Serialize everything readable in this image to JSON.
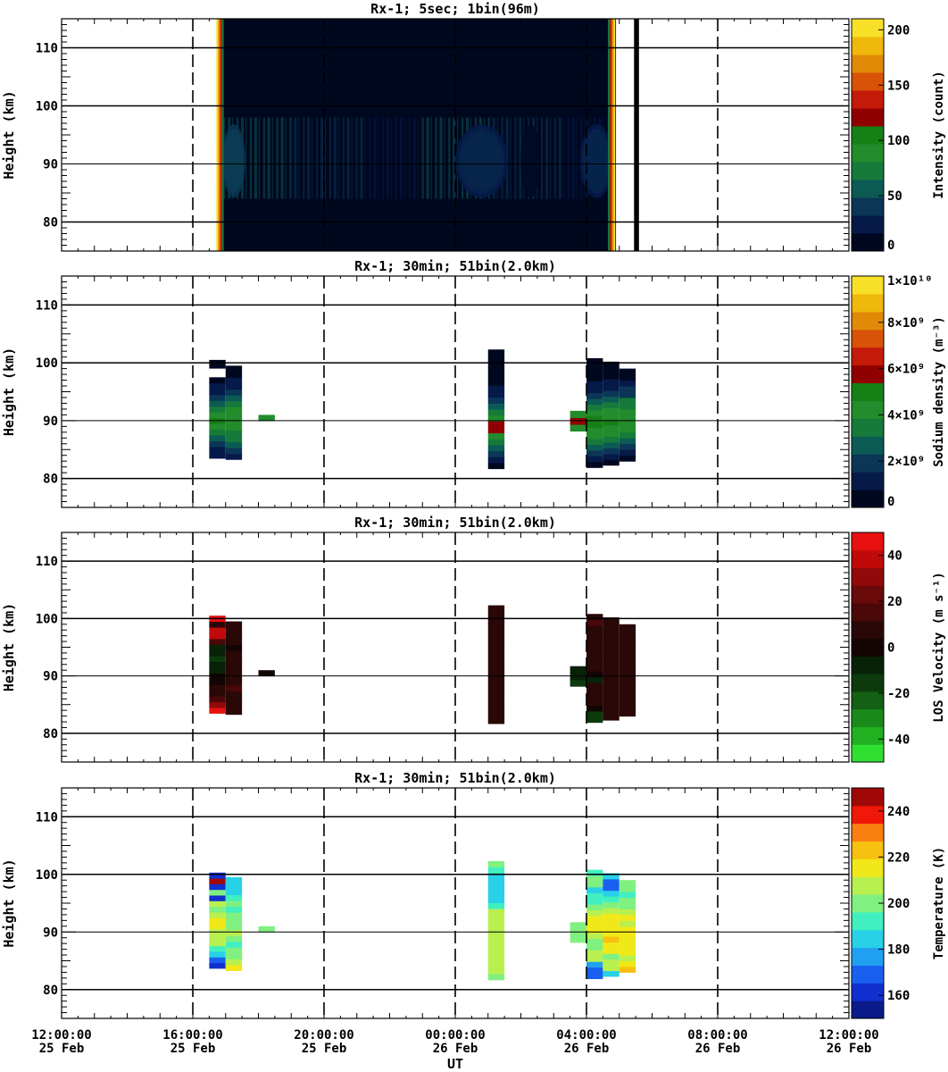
{
  "x_axis": {
    "label": "UT",
    "ticks": [
      {
        "hour": 0,
        "time": "12:00:00",
        "date": "25 Feb"
      },
      {
        "hour": 4,
        "time": "16:00:00",
        "date": "25 Feb"
      },
      {
        "hour": 8,
        "time": "20:00:00",
        "date": "25 Feb"
      },
      {
        "hour": 12,
        "time": "00:00:00",
        "date": "26 Feb"
      },
      {
        "hour": 16,
        "time": "04:00:00",
        "date": "26 Feb"
      },
      {
        "hour": 20,
        "time": "08:00:00",
        "date": "26 Feb"
      },
      {
        "hour": 24,
        "time": "12:00:00",
        "date": "26 Feb"
      }
    ]
  },
  "chart_data": [
    {
      "type": "heatmap",
      "title": "Rx-1;  5sec; 1bin(96m)",
      "ylabel": "Height (km)",
      "ylim": [
        75,
        115
      ],
      "yticks": [
        80,
        90,
        100,
        110
      ],
      "colorbar": {
        "label": "Intensity (count)",
        "range": [
          0,
          210
        ],
        "ticks": [
          {
            "v": 0,
            "t": "0"
          },
          {
            "v": 50,
            "t": "50"
          },
          {
            "v": 100,
            "t": "100"
          },
          {
            "v": 150,
            "t": "150"
          },
          {
            "v": 200,
            "t": "200"
          }
        ],
        "colors": [
          "#000820",
          "#061a4a",
          "#0b3656",
          "#0c5a54",
          "#157a3a",
          "#238c2c",
          "#158015",
          "#900000",
          "#c41a0a",
          "#d85208",
          "#e08a08",
          "#f0b80a",
          "#f8e028"
        ]
      },
      "observation": {
        "start_hour": 4.8,
        "end_hour": 16.9,
        "bright_band_km": [
          85,
          97
        ],
        "peak_km": 90.5
      },
      "intensity_patches": [
        {
          "start_hour": 4.9,
          "end_hour": 5.6,
          "level": 130
        },
        {
          "start_hour": 12.0,
          "end_hour": 13.6,
          "level": 125
        },
        {
          "start_hour": 14.0,
          "end_hour": 14.6,
          "level": 60
        },
        {
          "start_hour": 15.8,
          "end_hour": 16.8,
          "level": 120
        }
      ],
      "saturation_edges": [
        {
          "hour": 4.8
        },
        {
          "hour": 16.9
        }
      ],
      "black_stripe": {
        "start_hour": 17.45,
        "end_hour": 17.6
      }
    },
    {
      "type": "heatmap",
      "title": "Rx-1; 30min; 51bin(2.0km)",
      "ylabel": "Height (km)",
      "ylim": [
        75,
        115
      ],
      "yticks": [
        80,
        90,
        100,
        110
      ],
      "colorbar": {
        "label": "Sodium density (m⁻³)",
        "range": [
          0,
          10000000000.0
        ],
        "ticks": [
          {
            "v": 0,
            "t": "0"
          },
          {
            "v": 2000000000.0,
            "t": "2×10⁹"
          },
          {
            "v": 4000000000.0,
            "t": "4×10⁹"
          },
          {
            "v": 6000000000.0,
            "t": "6×10⁹"
          },
          {
            "v": 8000000000.0,
            "t": "8×10⁹"
          },
          {
            "v": 10000000000.0,
            "t": "1×10¹⁰"
          }
        ],
        "colors": [
          "#000820",
          "#061a4a",
          "#0b3656",
          "#0c5a54",
          "#157a3a",
          "#238c2c",
          "#158015",
          "#900000",
          "#c41a0a",
          "#d85208",
          "#e08a08",
          "#f0b80a",
          "#f8e028"
        ]
      },
      "columns": [
        {
          "start_hour": 4.5,
          "end_hour": 5.0,
          "bottom_km": 83.5,
          "top_km": 97.5,
          "cells": [
            1,
            1.5,
            2.2,
            3.0,
            3.8,
            4.4,
            4.7,
            4.5,
            3.8,
            3.0,
            2.0,
            1.2,
            0.8,
            0.5
          ],
          "extra": [
            {
              "bottom_km": 99.0,
              "top_km": 100.5,
              "v": 0.4
            }
          ]
        },
        {
          "start_hour": 5.0,
          "end_hour": 5.5,
          "bottom_km": 83.3,
          "top_km": 99.5,
          "cells": [
            1.0,
            1.6,
            2.4,
            3.1,
            3.8,
            4.2,
            4.5,
            4.6,
            4.3,
            3.6,
            2.8,
            2.0,
            1.4,
            0.9,
            0.6,
            0.4
          ]
        },
        {
          "start_hour": 6.0,
          "end_hour": 6.5,
          "bottom_km": 90.0,
          "top_km": 91.0,
          "cells": [
            4.4
          ]
        },
        {
          "start_hour": 13.0,
          "end_hour": 13.5,
          "bottom_km": 81.7,
          "top_km": 102.3,
          "cells": [
            0.5,
            1.0,
            1.6,
            2.6,
            3.6,
            4.5,
            6.0,
            5.9,
            4.6,
            3.6,
            2.6,
            1.8,
            1.2,
            0.8,
            0.6,
            0.5,
            0.4,
            0.3,
            0.3,
            0.2
          ]
        },
        {
          "start_hour": 15.5,
          "end_hour": 16.0,
          "bottom_km": 88.2,
          "top_km": 91.7,
          "cells": [
            4.3,
            6.1,
            4.5
          ]
        },
        {
          "start_hour": 16.0,
          "end_hour": 16.5,
          "bottom_km": 81.9,
          "top_km": 100.8,
          "cells": [
            0.6,
            1.2,
            2.0,
            2.8,
            3.6,
            4.3,
            4.6,
            4.8,
            4.7,
            4.2,
            3.6,
            2.9,
            2.1,
            1.5,
            1.0,
            0.7,
            0.5,
            0.4,
            0.3
          ]
        },
        {
          "start_hour": 16.5,
          "end_hour": 17.0,
          "bottom_km": 82.3,
          "top_km": 100.2,
          "cells": [
            0.6,
            1.2,
            2.0,
            2.9,
            3.7,
            4.3,
            4.6,
            4.7,
            4.6,
            4.1,
            3.5,
            2.7,
            2.0,
            1.4,
            0.9,
            0.6,
            0.4,
            0.3
          ]
        },
        {
          "start_hour": 17.0,
          "end_hour": 17.5,
          "bottom_km": 83.0,
          "top_km": 99.0,
          "cells": [
            0.6,
            1.3,
            2.1,
            3.0,
            3.8,
            4.3,
            4.5,
            4.6,
            4.4,
            3.8,
            3.1,
            2.3,
            1.6,
            1.0,
            0.6,
            0.4
          ]
        }
      ]
    },
    {
      "type": "heatmap",
      "title": "Rx-1; 30min; 51bin(2.0km)",
      "ylabel": "LOS Velocity (m s⁻¹)",
      "ylim": [
        75,
        115
      ],
      "yticks": [
        80,
        90,
        100,
        110
      ],
      "colorbar": {
        "label": "LOS Velocity (m s⁻¹)",
        "range": [
          -50,
          50
        ],
        "ticks": [
          {
            "v": -40,
            "t": "-40"
          },
          {
            "v": -20,
            "t": "-20"
          },
          {
            "v": 0,
            "t": "0"
          },
          {
            "v": 20,
            "t": "20"
          },
          {
            "v": 40,
            "t": "40"
          }
        ],
        "colors": [
          "#30e030",
          "#20b020",
          "#1a8a1a",
          "#146014",
          "#0c3a0c",
          "#082208",
          "#140505",
          "#2a0808",
          "#4a0808",
          "#6a0a0a",
          "#900a0a",
          "#c00a0a",
          "#e81010"
        ]
      },
      "columns": [
        {
          "start_hour": 4.5,
          "end_hour": 5.0,
          "bottom_km": 83.5,
          "top_km": 100.5,
          "cells": [
            45,
            32,
            18,
            10,
            5,
            2,
            -2,
            -6,
            -10,
            -14,
            -10,
            -4,
            12,
            35,
            42,
            10,
            48
          ]
        },
        {
          "start_hour": 5.0,
          "end_hour": 5.5,
          "bottom_km": 83.3,
          "top_km": 99.5,
          "cells": [
            5,
            5,
            5,
            10,
            18,
            8,
            5,
            4,
            4,
            5,
            4,
            3,
            4,
            5,
            5,
            4
          ]
        },
        {
          "start_hour": 6.0,
          "end_hour": 6.5,
          "bottom_km": 90.0,
          "top_km": 91.0,
          "cells": [
            2
          ]
        },
        {
          "start_hour": 13.0,
          "end_hour": 13.5,
          "bottom_km": 81.7,
          "top_km": 102.3,
          "cells": [
            4,
            4,
            4,
            4,
            4,
            4,
            4,
            4,
            4,
            4,
            4,
            4,
            4,
            4,
            4,
            4,
            4,
            4,
            4,
            4
          ]
        },
        {
          "start_hour": 15.5,
          "end_hour": 16.0,
          "bottom_km": 88.2,
          "top_km": 91.7,
          "cells": [
            -12,
            -10,
            -6
          ]
        },
        {
          "start_hour": 16.0,
          "end_hour": 16.5,
          "bottom_km": 81.9,
          "top_km": 100.8,
          "cells": [
            -14,
            -12,
            3,
            4,
            4,
            4,
            4,
            -4,
            3,
            4,
            4,
            4,
            4,
            4,
            4,
            4,
            4,
            12,
            10
          ]
        },
        {
          "start_hour": 16.5,
          "end_hour": 17.0,
          "bottom_km": 82.3,
          "top_km": 100.2,
          "cells": [
            4,
            4,
            4,
            4,
            4,
            4,
            4,
            4,
            4,
            4,
            4,
            4,
            4,
            4,
            4,
            4,
            6,
            4
          ]
        },
        {
          "start_hour": 17.0,
          "end_hour": 17.5,
          "bottom_km": 83.0,
          "top_km": 99.0,
          "cells": [
            4,
            4,
            4,
            4,
            4,
            4,
            4,
            4,
            4,
            4,
            4,
            4,
            4,
            4,
            4,
            6
          ]
        }
      ]
    },
    {
      "type": "heatmap",
      "title": "Rx-1; 30min; 51bin(2.0km)",
      "ylabel": "Height (km)",
      "ylim": [
        75,
        115
      ],
      "yticks": [
        80,
        90,
        100,
        110
      ],
      "colorbar": {
        "label": "Temperature (K)",
        "range": [
          150,
          250
        ],
        "ticks": [
          {
            "v": 160,
            "t": "160"
          },
          {
            "v": 180,
            "t": "180"
          },
          {
            "v": 200,
            "t": "200"
          },
          {
            "v": 220,
            "t": "220"
          },
          {
            "v": 240,
            "t": "240"
          }
        ],
        "colors": [
          "#0a1a8a",
          "#1030d0",
          "#1a60f0",
          "#20a0f0",
          "#28d0e8",
          "#40f0c0",
          "#80f080",
          "#b8f050",
          "#f0e818",
          "#f8c010",
          "#f88010",
          "#f01808",
          "#a00808"
        ]
      },
      "columns": [
        {
          "start_hour": 4.5,
          "end_hour": 5.0,
          "bottom_km": 83.7,
          "top_km": 100.3,
          "cells": [
            160,
            170,
            182,
            194,
            204,
            208,
            206,
            212,
            212,
            205,
            200,
            210,
            165,
            198,
            158,
            255,
            158
          ]
        },
        {
          "start_hour": 5.0,
          "end_hour": 5.5,
          "bottom_km": 83.3,
          "top_km": 99.5,
          "cells": [
            218,
            205,
            198,
            202,
            196,
            200,
            204,
            202,
            198,
            202,
            196,
            200,
            190,
            185,
            185,
            185
          ]
        },
        {
          "start_hour": 6.0,
          "end_hour": 6.5,
          "bottom_km": 90.0,
          "top_km": 91.0,
          "cells": [
            198
          ]
        },
        {
          "start_hour": 13.0,
          "end_hour": 13.5,
          "bottom_km": 81.7,
          "top_km": 102.3,
          "cells": [
            200,
            206,
            208,
            206,
            208,
            206,
            206,
            208,
            208,
            206,
            208,
            206,
            190,
            188,
            186,
            186,
            186,
            188,
            192,
            200
          ]
        },
        {
          "start_hour": 15.5,
          "end_hour": 16.0,
          "bottom_km": 88.2,
          "top_km": 91.7,
          "cells": [
            202,
            198,
            200
          ]
        },
        {
          "start_hour": 16.0,
          "end_hour": 16.5,
          "bottom_km": 81.9,
          "top_km": 100.8,
          "cells": [
            172,
            172,
            176,
            204,
            210,
            200,
            198,
            206,
            212,
            214,
            212,
            210,
            200,
            196,
            192,
            186,
            198,
            200,
            196
          ]
        },
        {
          "start_hour": 16.5,
          "end_hour": 17.0,
          "bottom_km": 82.3,
          "top_km": 100.2,
          "cells": [
            186,
            204,
            208,
            200,
            212,
            218,
            220,
            216,
            218,
            218,
            212,
            208,
            202,
            196,
            186,
            172,
            168,
            182
          ]
        },
        {
          "start_hour": 17.0,
          "end_hour": 17.5,
          "bottom_km": 83.0,
          "top_km": 99.0,
          "cells": [
            220,
            215,
            208,
            212,
            214,
            218,
            216,
            214,
            210,
            212,
            205,
            202,
            198,
            196,
            200,
            202
          ]
        }
      ]
    }
  ]
}
